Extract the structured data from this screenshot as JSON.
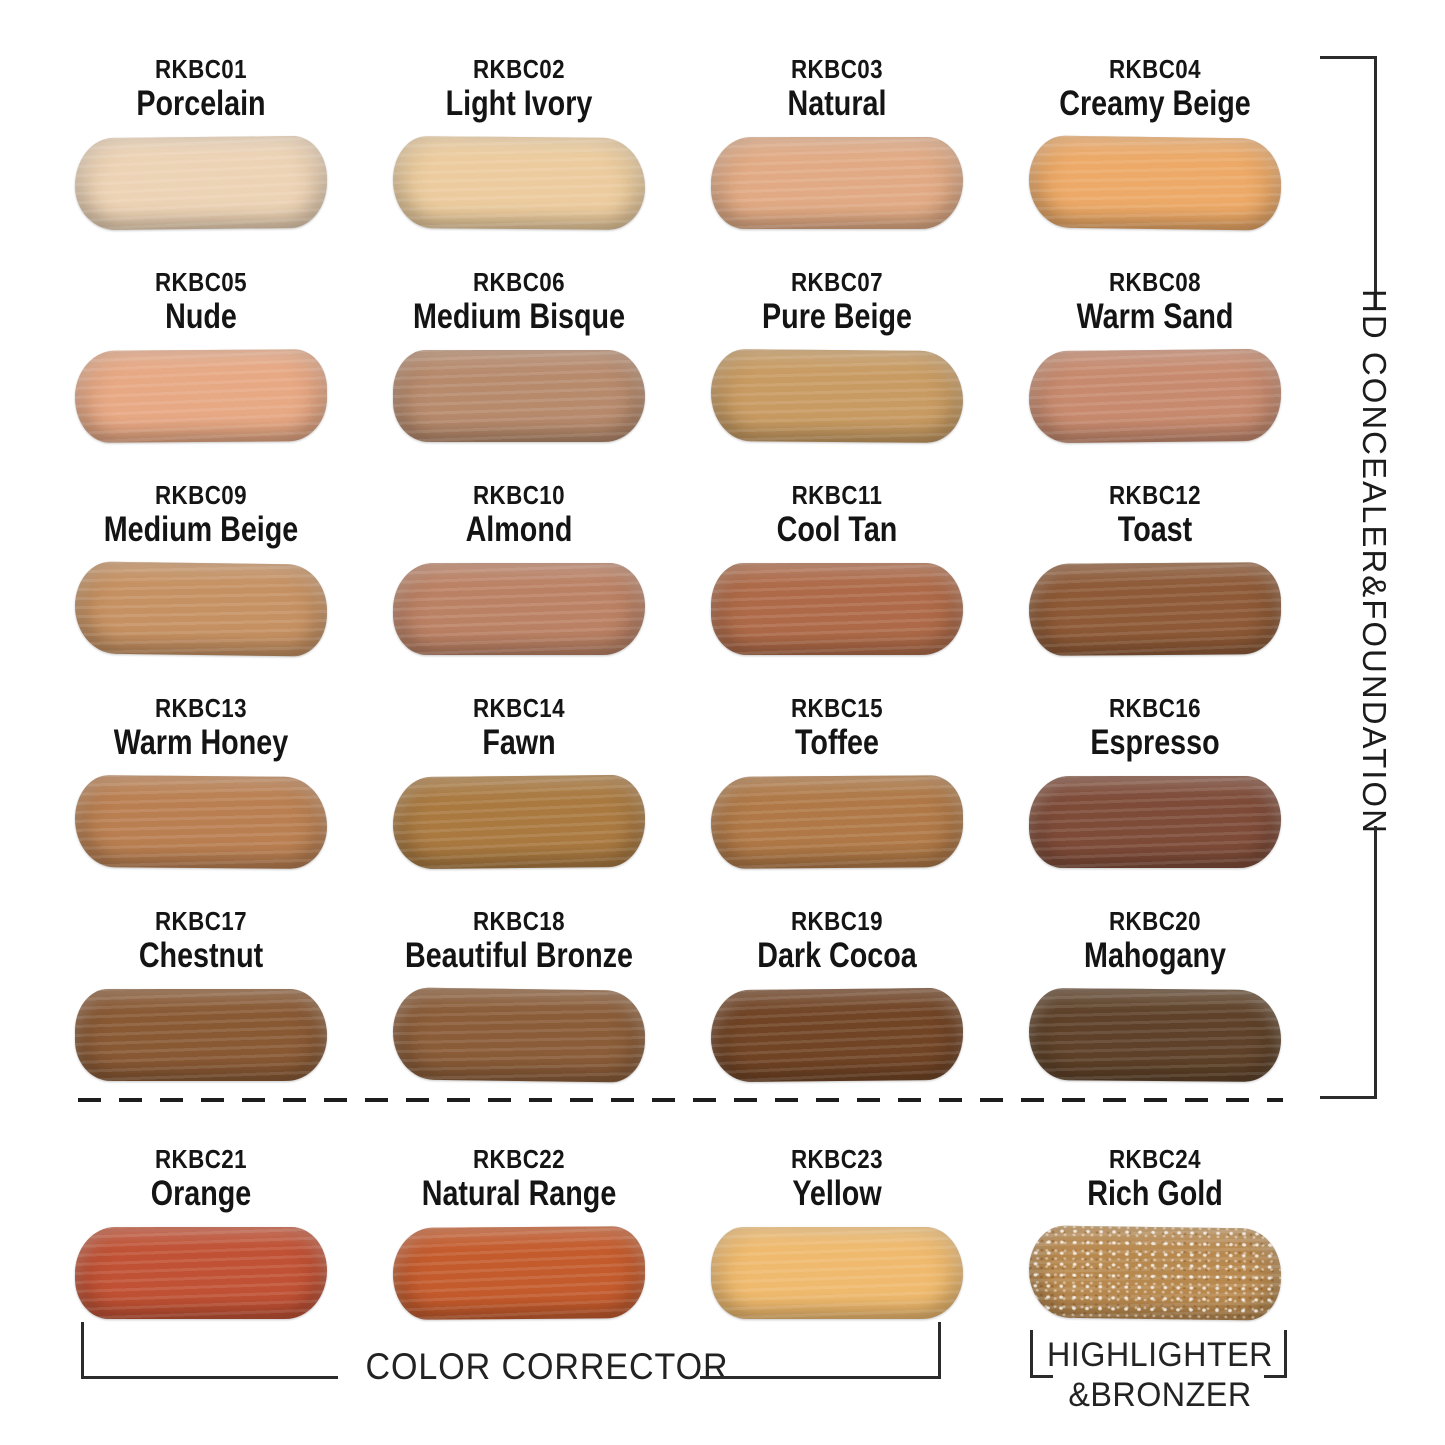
{
  "sections": {
    "right_label": "HD CONCEALER&FOUNDATION",
    "color_corrector_label": "COLOR CORRECTOR",
    "highlighter_label_line1": "HIGHLIGHTER",
    "highlighter_label_line2": "&BRONZER"
  },
  "line_color": "#2b2b2b",
  "swatches": [
    {
      "code": "RKBC01",
      "name": "Porcelain",
      "color": "#edd3b5"
    },
    {
      "code": "RKBC02",
      "name": "Light Ivory",
      "color": "#eccc9e"
    },
    {
      "code": "RKBC03",
      "name": "Natural",
      "color": "#e1aa84"
    },
    {
      "code": "RKBC04",
      "name": "Creamy Beige",
      "color": "#eca967"
    },
    {
      "code": "RKBC05",
      "name": "Nude",
      "color": "#e7a884"
    },
    {
      "code": "RKBC06",
      "name": "Medium Bisque",
      "color": "#b78a6c"
    },
    {
      "code": "RKBC07",
      "name": "Pure Beige",
      "color": "#c89b62"
    },
    {
      "code": "RKBC08",
      "name": "Warm Sand",
      "color": "#c78a6e"
    },
    {
      "code": "RKBC09",
      "name": "Medium Beige",
      "color": "#c69162"
    },
    {
      "code": "RKBC10",
      "name": "Almond",
      "color": "#bb8164"
    },
    {
      "code": "RKBC11",
      "name": "Cool Tan",
      "color": "#ae6a48"
    },
    {
      "code": "RKBC12",
      "name": "Toast",
      "color": "#8d5936"
    },
    {
      "code": "RKBC13",
      "name": "Warm Honey",
      "color": "#ba7f51"
    },
    {
      "code": "RKBC14",
      "name": "Fawn",
      "color": "#a97940"
    },
    {
      "code": "RKBC15",
      "name": "Toffee",
      "color": "#af7846"
    },
    {
      "code": "RKBC16",
      "name": "Espresso",
      "color": "#7e4b38"
    },
    {
      "code": "RKBC17",
      "name": "Chestnut",
      "color": "#895934"
    },
    {
      "code": "RKBC18",
      "name": "Beautiful Bronze",
      "color": "#8a5c38"
    },
    {
      "code": "RKBC19",
      "name": "Dark Cocoa",
      "color": "#714425"
    },
    {
      "code": "RKBC20",
      "name": "Mahogany",
      "color": "#5e4128"
    },
    {
      "code": "RKBC21",
      "name": "Orange",
      "color": "#c05134"
    },
    {
      "code": "RKBC22",
      "name": "Natural Range",
      "color": "#c45b2d"
    },
    {
      "code": "RKBC23",
      "name": "Yellow",
      "color": "#efba6e"
    },
    {
      "code": "RKBC24",
      "name": "Rich Gold",
      "color": "#b8894f"
    }
  ]
}
